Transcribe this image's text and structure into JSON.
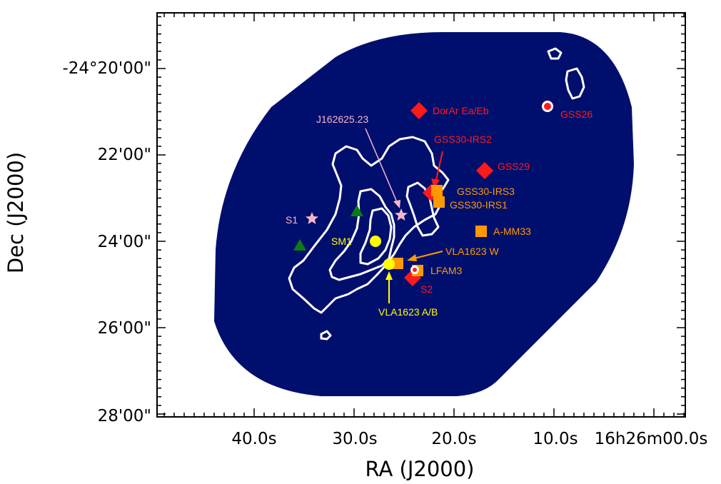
{
  "axes": {
    "xlabel": "RA (J2000)",
    "ylabel": "Dec (J2000)",
    "xticks": [
      "40.0s",
      "30.0s",
      "20.0s",
      "10.0s",
      "16h26m00.0s"
    ],
    "yticks": [
      "-24°20'00\"",
      "22'00\"",
      "24'00\"",
      "26'00\"",
      "28'00\""
    ]
  },
  "colors": {
    "map_fill": "#000f6e",
    "contour": "#ffffff",
    "class_red": "#ff1a1a",
    "class_orange": "#ff9900",
    "class_yellow": "#ffff00",
    "class_pink": "#f7b6c8",
    "class_green": "#0a7d12"
  },
  "sources": [
    {
      "id": "dorar",
      "label": "DorAr Ea/Eb",
      "symbol": "diamond",
      "color": "#ff1a1a"
    },
    {
      "id": "gss26",
      "label": "GSS26",
      "symbol": "ring-dot",
      "color": "#ff1a1a"
    },
    {
      "id": "gss30irs2",
      "label": "GSS30-IRS2",
      "symbol": "diamond",
      "color": "#ff1a1a"
    },
    {
      "id": "gss29",
      "label": "GSS29",
      "symbol": "diamond",
      "color": "#ff1a1a"
    },
    {
      "id": "gss30irs3",
      "label": "GSS30-IRS3",
      "symbol": "square",
      "color": "#ff9900"
    },
    {
      "id": "gss30irs1",
      "label": "GSS30-IRS1",
      "symbol": "square",
      "color": "#ff9900"
    },
    {
      "id": "amm33",
      "label": "A-MM33",
      "symbol": "square",
      "color": "#ff9900"
    },
    {
      "id": "vla1623w",
      "label": "VLA1623 W",
      "symbol": "square",
      "color": "#ff9900"
    },
    {
      "id": "lfam3",
      "label": "LFAM3",
      "symbol": "square",
      "color": "#ff9900"
    },
    {
      "id": "s2",
      "label": "S2",
      "symbol": "diamond",
      "color": "#ff1a1a"
    },
    {
      "id": "sm1",
      "label": "SM1",
      "symbol": "circle",
      "color": "#ffff00"
    },
    {
      "id": "vla1623ab",
      "label": "VLA1623 A/B",
      "symbol": "circle",
      "color": "#ffff00"
    },
    {
      "id": "j162625",
      "label": "J162625.23",
      "symbol": "star",
      "color": "#f7b6c8"
    },
    {
      "id": "s1",
      "label": "S1",
      "symbol": "star",
      "color": "#f7b6c8"
    },
    {
      "id": "green1",
      "label": "",
      "symbol": "triangle",
      "color": "#0a7d12"
    },
    {
      "id": "green2",
      "label": "",
      "symbol": "triangle",
      "color": "#0a7d12"
    }
  ]
}
